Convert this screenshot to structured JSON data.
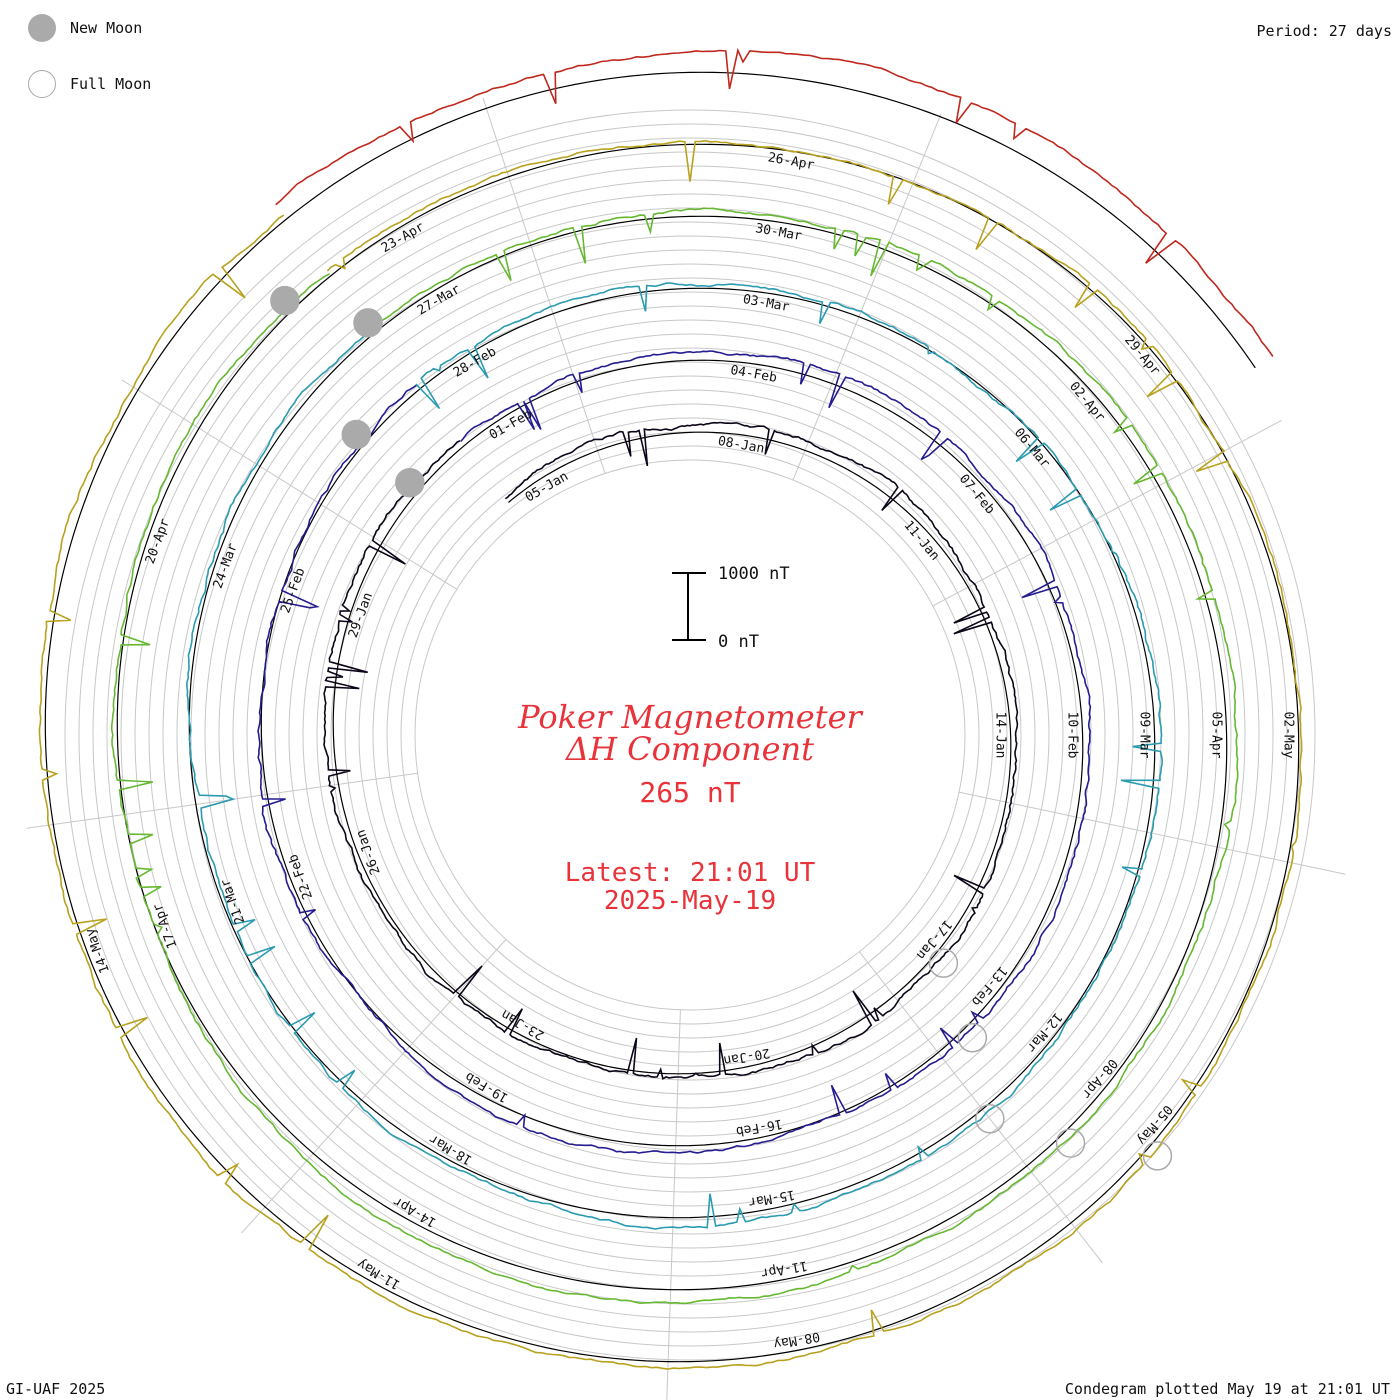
{
  "legend": {
    "new_moon": "New Moon",
    "full_moon": "Full Moon"
  },
  "period": "Period: 27 days",
  "footer": {
    "left": "GI-UAF 2025",
    "right": "Condegram plotted May 19 at 21:01 UT"
  },
  "title": {
    "line1": "Poker Magnetometer",
    "line2": "ΔH Component",
    "value": "265 nT",
    "latest": "Latest: 21:01 UT",
    "date": "2025-May-19"
  },
  "colors": {
    "title": "#e8333a",
    "grid": "#c8c8c8",
    "baseline": "#000000",
    "moon": "#aaaaaa"
  },
  "chart_data": {
    "type": "line",
    "subtype": "spiral condegram",
    "title": "Poker Magnetometer",
    "component": "ΔH Component",
    "period_days": 27,
    "scale_bar": {
      "top_label": "1000 nT",
      "bottom_label": "0 nT",
      "range": [
        0,
        1000
      ]
    },
    "cycles": [
      {
        "start": "05-Jan",
        "color": "#0d0519",
        "labels": [
          "05-Jan",
          "08-Jan",
          "11-Jan",
          "14-Jan",
          "17-Jan",
          "20-Jan",
          "23-Jan",
          "26-Jan",
          "29-Jan"
        ]
      },
      {
        "start": "01-Feb",
        "color": "#241c8f",
        "labels": [
          "01-Feb",
          "04-Feb",
          "07-Feb",
          "10-Feb",
          "13-Feb",
          "16-Feb",
          "19-Feb",
          "22-Feb",
          "25-Feb"
        ]
      },
      {
        "start": "27-Feb",
        "color": "#2a9bb0",
        "labels": [
          "28-Feb",
          "03-Mar",
          "06-Mar",
          "09-Mar",
          "12-Mar",
          "15-Mar",
          "18-Mar",
          "21-Mar",
          "24-Mar"
        ]
      },
      {
        "start": "27-Mar",
        "color": "#66b832",
        "labels": [
          "27-Mar",
          "30-Mar",
          "02-Apr",
          "05-Apr",
          "08-Apr",
          "11-Apr",
          "14-Apr",
          "17-Apr",
          "20-Apr"
        ]
      },
      {
        "start": "23-Apr",
        "color": "#b8a11e",
        "labels": [
          "23-Apr",
          "26-Apr",
          "29-Apr",
          "02-May",
          "05-May",
          "08-May",
          "11-May",
          "14-May"
        ]
      },
      {
        "start": "19-May",
        "color": "#c0281e",
        "labels": []
      }
    ],
    "new_moon_dates": [
      "29-Jan",
      "27-Feb",
      "29-Mar",
      "27-Apr"
    ],
    "full_moon_dates": [
      "13-Jan",
      "12-Feb",
      "14-Mar",
      "13-Apr",
      "12-May"
    ],
    "latest_value_nT": 265
  }
}
